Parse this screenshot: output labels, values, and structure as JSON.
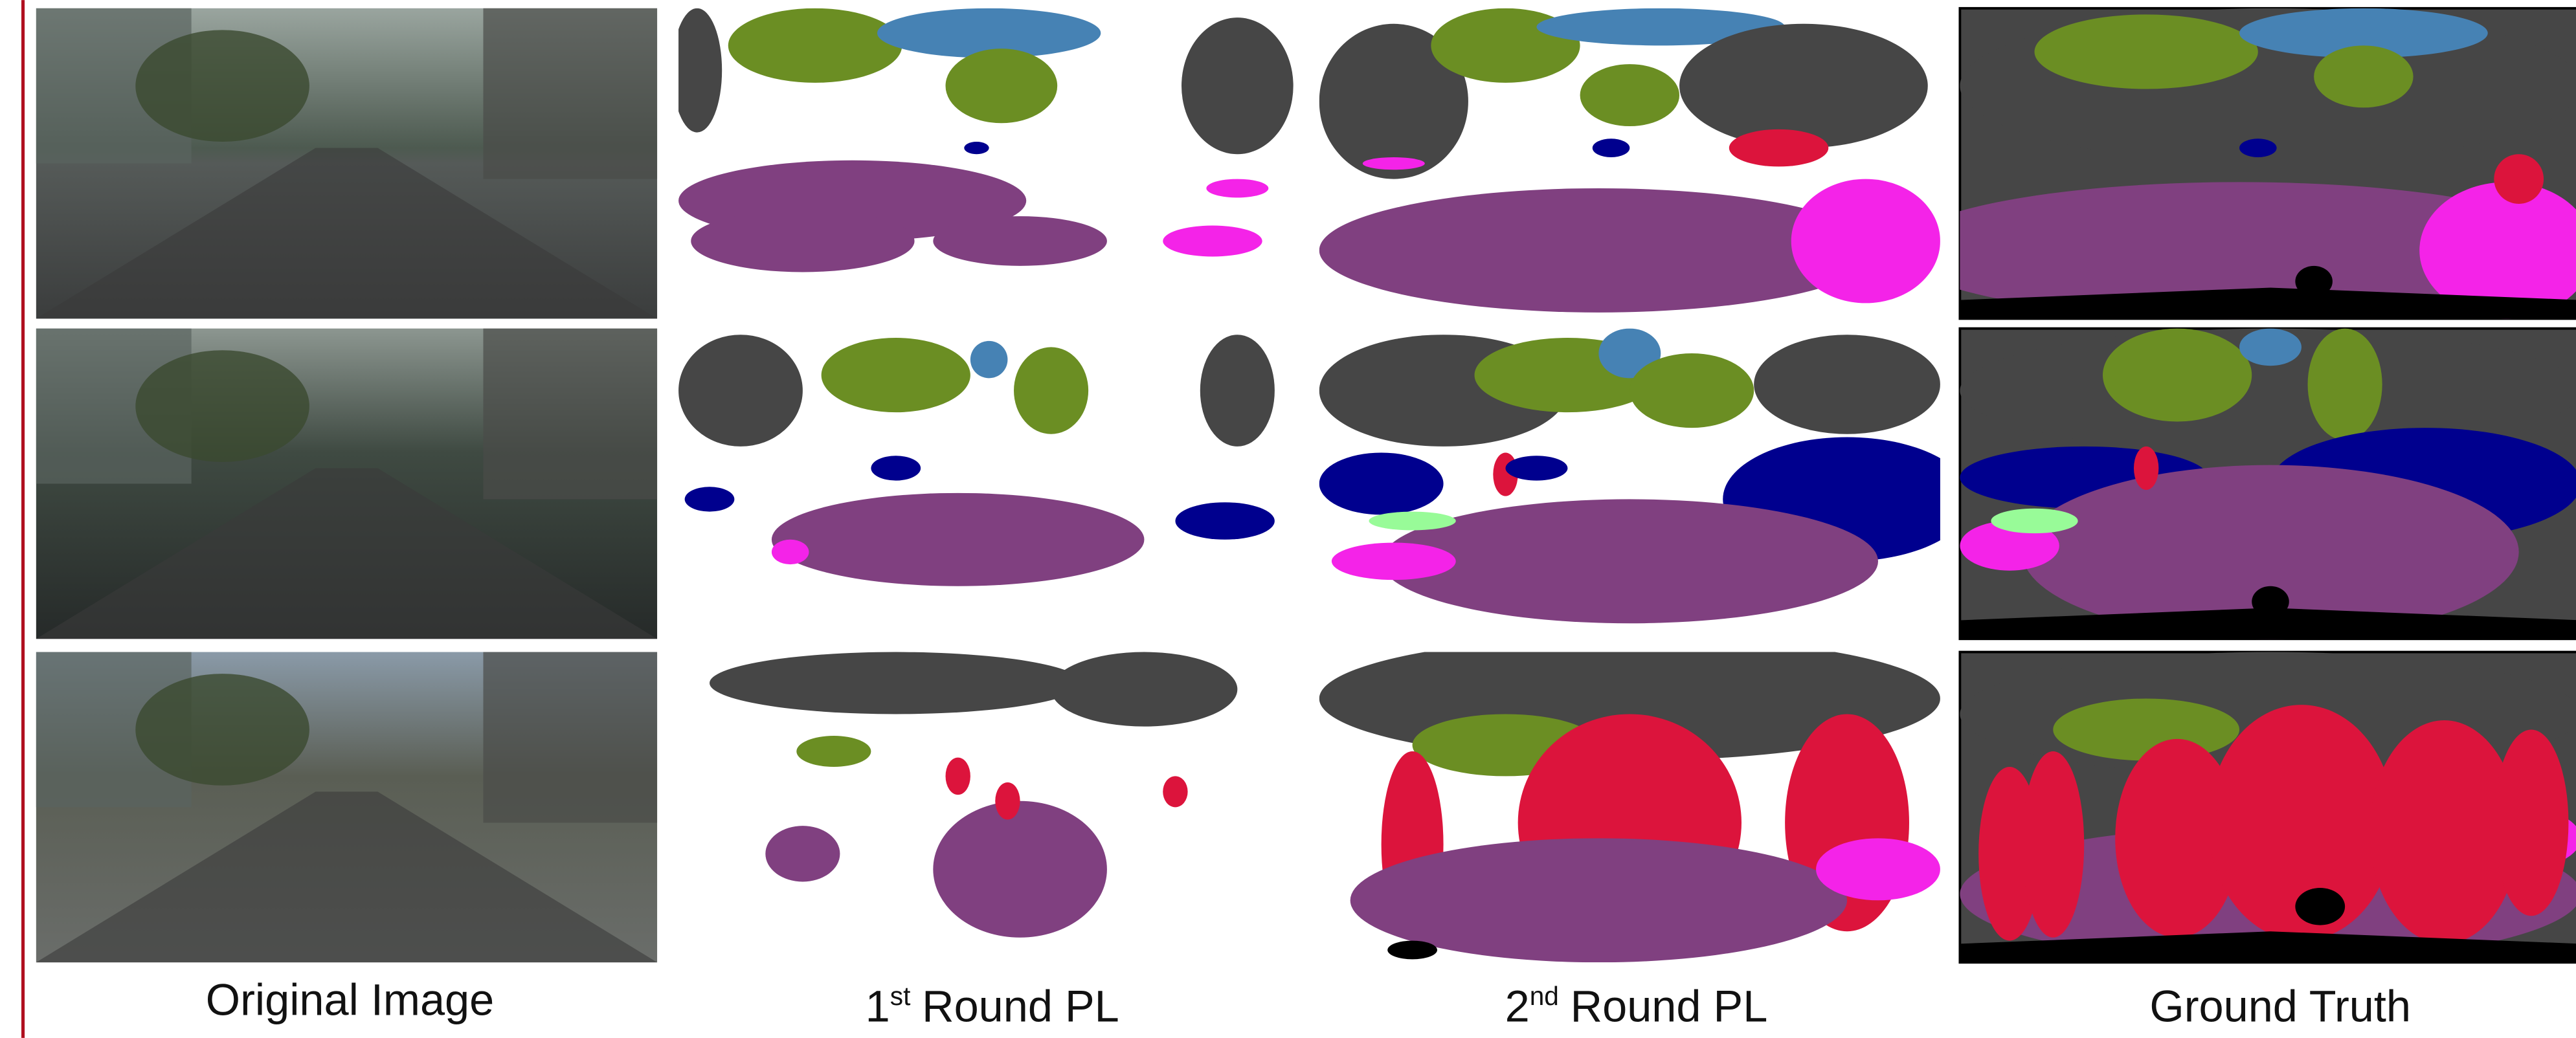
{
  "columns": [
    {
      "label": "Original Image"
    },
    {
      "ordinal": "1",
      "suffix": "st",
      "rest": "Round PL"
    },
    {
      "ordinal": "2",
      "suffix": "nd",
      "rest": "Round PL"
    },
    {
      "label": "Ground Truth"
    }
  ]
}
